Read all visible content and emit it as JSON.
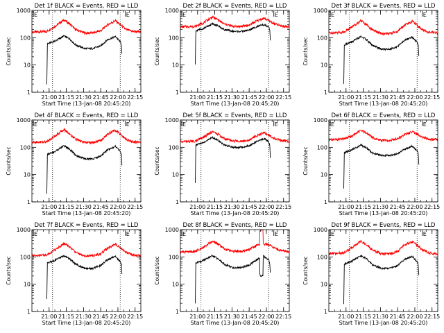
{
  "colors": {
    "events": "#000000",
    "lld": "#ff0000",
    "axes": "#000000",
    "background": "#ffffff"
  },
  "chart_data": [
    {
      "type": "line",
      "title": "Det 1f BLACK = Events, RED = LLD",
      "flag": "E",
      "xlabel": "Start Time (13-Jan-08 20:45:20)",
      "ylabel": "Counts/sec",
      "xlim_min": [
        0,
        95
      ],
      "ylim": [
        1,
        1000
      ],
      "yscale": "log",
      "xticks_min": [
        15,
        30,
        45,
        60,
        75,
        90
      ],
      "xtick_labels": [
        "21:00",
        "21:15",
        "21:30",
        "21:45",
        "22:00",
        "22:15"
      ],
      "yticks": [
        1,
        10,
        100,
        1000
      ],
      "ytick_labels": [
        "1",
        "10",
        "100",
        "1000"
      ],
      "vlines_min": [
        18,
        77
      ],
      "data_range_min": [
        13,
        82
      ],
      "series": [
        {
          "name": "LLD",
          "color": "red",
          "x": [
            0,
            13,
            20,
            28,
            33,
            38,
            46,
            53,
            60,
            66,
            73,
            77,
            82,
            88,
            95
          ],
          "y": [
            160,
            170,
            260,
            450,
            320,
            200,
            150,
            150,
            180,
            300,
            420,
            300,
            200,
            170,
            160
          ]
        },
        {
          "name": "Events",
          "color": "black",
          "x": [
            13,
            13.5,
            20,
            28,
            33,
            38,
            46,
            53,
            60,
            66,
            73,
            77,
            78,
            78.5
          ],
          "y": [
            2,
            60,
            75,
            115,
            90,
            55,
            40,
            40,
            50,
            85,
            110,
            70,
            55,
            25
          ]
        }
      ]
    },
    {
      "type": "line",
      "title": "Det 2f BLACK = Events, RED = LLD",
      "flag": "E",
      "xlabel": "Start Time (13-Jan-08 20:45:20)",
      "ylabel": "Counts/sec",
      "xlim_min": [
        0,
        95
      ],
      "ylim": [
        1,
        1000
      ],
      "yscale": "log",
      "xticks_min": [
        15,
        30,
        45,
        60,
        75,
        90
      ],
      "xtick_labels": [
        "21:00",
        "21:15",
        "21:30",
        "21:45",
        "22:00",
        "22:15"
      ],
      "yticks": [
        1,
        10,
        100,
        1000
      ],
      "ytick_labels": [
        "1",
        "10",
        "100",
        "1000"
      ],
      "vlines_min": [
        18,
        77
      ],
      "data_range_min": [
        13,
        82
      ],
      "series": [
        {
          "name": "LLD",
          "color": "red",
          "x": [
            0,
            13,
            20,
            28,
            33,
            38,
            46,
            53,
            60,
            66,
            73,
            77,
            82,
            88,
            95
          ],
          "y": [
            250,
            260,
            350,
            580,
            450,
            320,
            260,
            260,
            290,
            400,
            520,
            420,
            320,
            270,
            250
          ]
        },
        {
          "name": "Events",
          "color": "black",
          "x": [
            13,
            13.5,
            20,
            28,
            33,
            38,
            46,
            53,
            60,
            66,
            73,
            77,
            78,
            78.5
          ],
          "y": [
            10,
            180,
            220,
            320,
            270,
            200,
            170,
            170,
            190,
            250,
            300,
            240,
            200,
            80
          ]
        }
      ]
    },
    {
      "type": "line",
      "title": "Det 3f BLACK = Events, RED = LLD",
      "flag": "E",
      "xlabel": "Start Time (13-Jan-08 20:45:20)",
      "ylabel": "Counts/sec",
      "xlim_min": [
        0,
        95
      ],
      "ylim": [
        1,
        1000
      ],
      "yscale": "log",
      "xticks_min": [
        15,
        30,
        45,
        60,
        75,
        90
      ],
      "xtick_labels": [
        "21:00",
        "21:15",
        "21:30",
        "21:45",
        "22:00",
        "22:15"
      ],
      "yticks": [
        1,
        10,
        100,
        1000
      ],
      "ytick_labels": [
        "1",
        "10",
        "100",
        "1000"
      ],
      "vlines_min": [
        18,
        77
      ],
      "data_range_min": [
        13,
        82
      ],
      "series": [
        {
          "name": "LLD",
          "color": "red",
          "x": [
            0,
            13,
            20,
            28,
            33,
            38,
            46,
            53,
            60,
            66,
            73,
            77,
            82,
            88,
            95
          ],
          "y": [
            150,
            160,
            250,
            420,
            300,
            190,
            140,
            140,
            170,
            290,
            400,
            290,
            190,
            160,
            150
          ]
        },
        {
          "name": "Events",
          "color": "black",
          "x": [
            13,
            13.5,
            20,
            28,
            33,
            38,
            46,
            53,
            60,
            66,
            73,
            77,
            78,
            78.5
          ],
          "y": [
            2,
            55,
            70,
            110,
            85,
            52,
            38,
            38,
            48,
            80,
            105,
            68,
            52,
            22
          ]
        }
      ]
    },
    {
      "type": "line",
      "title": "Det 4f BLACK = Events, RED = LLD",
      "flag": "E",
      "xlabel": "Start Time (13-Jan-08 20:45:20)",
      "ylabel": "Counts/sec",
      "xlim_min": [
        0,
        95
      ],
      "ylim": [
        1,
        1000
      ],
      "yscale": "log",
      "xticks_min": [
        15,
        30,
        45,
        60,
        75,
        90
      ],
      "xtick_labels": [
        "21:00",
        "21:15",
        "21:30",
        "21:45",
        "22:00",
        "22:15"
      ],
      "yticks": [
        1,
        10,
        100,
        1000
      ],
      "ytick_labels": [
        "1",
        "10",
        "100",
        "1000"
      ],
      "vlines_min": [
        18,
        77
      ],
      "data_range_min": [
        13,
        82
      ],
      "series": [
        {
          "name": "LLD",
          "color": "red",
          "x": [
            0,
            13,
            20,
            28,
            33,
            38,
            46,
            53,
            60,
            66,
            73,
            77,
            82,
            88,
            95
          ],
          "y": [
            150,
            160,
            260,
            450,
            310,
            200,
            150,
            150,
            180,
            300,
            430,
            300,
            200,
            160,
            150
          ]
        },
        {
          "name": "Events",
          "color": "black",
          "x": [
            13,
            13.5,
            20,
            28,
            33,
            38,
            46,
            53,
            60,
            66,
            73,
            77,
            78,
            78.5
          ],
          "y": [
            2,
            55,
            70,
            115,
            85,
            52,
            38,
            38,
            48,
            82,
            110,
            70,
            52,
            22
          ]
        }
      ]
    },
    {
      "type": "line",
      "title": "Det 5f BLACK = Events, RED = LLD",
      "flag": "E",
      "xlabel": "Start Time (13-Jan-08 20:45:20)",
      "ylabel": "Counts/sec",
      "xlim_min": [
        0,
        95
      ],
      "ylim": [
        1,
        1000
      ],
      "yscale": "log",
      "xticks_min": [
        15,
        30,
        45,
        60,
        75,
        90
      ],
      "xtick_labels": [
        "21:00",
        "21:15",
        "21:30",
        "21:45",
        "22:00",
        "22:15"
      ],
      "yticks": [
        1,
        10,
        100,
        1000
      ],
      "ytick_labels": [
        "1",
        "10",
        "100",
        "1000"
      ],
      "vlines_min": [
        18,
        77
      ],
      "data_range_min": [
        13,
        82
      ],
      "series": [
        {
          "name": "LLD",
          "color": "red",
          "x": [
            0,
            13,
            20,
            28,
            33,
            38,
            46,
            53,
            60,
            66,
            73,
            77,
            82,
            88,
            95
          ],
          "y": [
            160,
            170,
            230,
            380,
            300,
            210,
            170,
            170,
            190,
            260,
            350,
            280,
            210,
            180,
            160
          ]
        },
        {
          "name": "Events",
          "color": "black",
          "x": [
            13,
            13.5,
            20,
            28,
            33,
            38,
            46,
            53,
            60,
            66,
            73,
            77,
            78,
            78.5
          ],
          "y": [
            5,
            120,
            150,
            230,
            180,
            120,
            100,
            100,
            115,
            160,
            210,
            160,
            120,
            40
          ]
        }
      ]
    },
    {
      "type": "line",
      "title": "Det 6f BLACK = Events, RED = LLD",
      "flag": "E",
      "xlabel": "Start Time (13-Jan-08 20:45:20)",
      "ylabel": "Counts/sec",
      "xlim_min": [
        0,
        95
      ],
      "ylim": [
        1,
        1000
      ],
      "yscale": "log",
      "xticks_min": [
        15,
        30,
        45,
        60,
        75,
        90
      ],
      "xtick_labels": [
        "21:00",
        "21:15",
        "21:30",
        "21:45",
        "22:00",
        "22:15"
      ],
      "yticks": [
        1,
        10,
        100,
        1000
      ],
      "ytick_labels": [
        "1",
        "10",
        "100",
        "1000"
      ],
      "vlines_min": [
        18,
        77
      ],
      "data_range_min": [
        13,
        82
      ],
      "series": [
        {
          "name": "LLD",
          "color": "red",
          "x": [
            0,
            13,
            20,
            28,
            33,
            38,
            46,
            53,
            60,
            66,
            73,
            77,
            82,
            88,
            95
          ],
          "y": [
            190,
            200,
            260,
            420,
            330,
            230,
            180,
            180,
            210,
            290,
            380,
            300,
            230,
            200,
            190
          ]
        },
        {
          "name": "Events",
          "color": "black",
          "x": [
            13,
            13.5,
            20,
            28,
            33,
            38,
            46,
            53,
            60,
            66,
            73,
            77,
            78,
            78.5
          ],
          "y": [
            3,
            65,
            80,
            120,
            95,
            62,
            50,
            50,
            58,
            85,
            110,
            75,
            60,
            25
          ]
        }
      ]
    },
    {
      "type": "line",
      "title": "Det 7f BLACK = Events, RED = LLD",
      "flag": "E",
      "xlabel": "Start Time (13-Jan-08 20:45:20)",
      "ylabel": "Counts/sec",
      "xlim_min": [
        0,
        95
      ],
      "ylim": [
        1,
        1000
      ],
      "yscale": "log",
      "xticks_min": [
        15,
        30,
        45,
        60,
        75,
        90
      ],
      "xtick_labels": [
        "21:00",
        "21:15",
        "21:30",
        "21:45",
        "22:00",
        "22:15"
      ],
      "yticks": [
        1,
        10,
        100,
        1000
      ],
      "ytick_labels": [
        "1",
        "10",
        "100",
        "1000"
      ],
      "vlines_min": [
        18,
        77
      ],
      "data_range_min": [
        13,
        82
      ],
      "series": [
        {
          "name": "LLD",
          "color": "red",
          "x": [
            0,
            13,
            20,
            28,
            33,
            38,
            46,
            53,
            60,
            66,
            73,
            77,
            82,
            88,
            95
          ],
          "y": [
            110,
            120,
            180,
            310,
            230,
            150,
            110,
            110,
            130,
            210,
            300,
            220,
            150,
            120,
            110
          ]
        },
        {
          "name": "Events",
          "color": "black",
          "x": [
            13,
            13.5,
            20,
            28,
            33,
            38,
            46,
            53,
            60,
            66,
            73,
            77,
            78,
            78.5
          ],
          "y": [
            3,
            60,
            75,
            110,
            85,
            55,
            38,
            38,
            48,
            80,
            105,
            68,
            52,
            22
          ]
        }
      ]
    },
    {
      "type": "line",
      "title": "Det 8f BLACK = Events, RED = LLD",
      "flag": "E",
      "xlabel": "Start Time (13-Jan-08 20:45:20)",
      "ylabel": "Counts/sec",
      "xlim_min": [
        0,
        95
      ],
      "ylim": [
        1,
        1000
      ],
      "yscale": "log",
      "xticks_min": [
        15,
        30,
        45,
        60,
        75,
        90
      ],
      "xtick_labels": [
        "21:00",
        "21:15",
        "21:30",
        "21:45",
        "22:00",
        "22:15"
      ],
      "yticks": [
        1,
        10,
        100,
        1000
      ],
      "ytick_labels": [
        "1",
        "10",
        "100",
        "1000"
      ],
      "vlines_min": [
        18,
        77
      ],
      "data_range_min": [
        13,
        82
      ],
      "series": [
        {
          "name": "LLD",
          "color": "red",
          "x": [
            0,
            13,
            20,
            28,
            33,
            38,
            46,
            53,
            60,
            66,
            69,
            69.3,
            72,
            72.3,
            77,
            82,
            88,
            95
          ],
          "y": [
            150,
            160,
            230,
            380,
            290,
            200,
            160,
            160,
            190,
            260,
            300,
            1000,
            1000,
            300,
            280,
            210,
            170,
            150
          ]
        },
        {
          "name": "Events",
          "color": "black",
          "x": [
            13,
            13.5,
            20,
            28,
            33,
            38,
            46,
            53,
            60,
            66,
            69,
            69.3,
            72,
            72.3,
            77,
            78,
            78.5
          ],
          "y": [
            2,
            60,
            75,
            110,
            85,
            55,
            40,
            40,
            50,
            75,
            90,
            20,
            20,
            110,
            80,
            55,
            25
          ]
        }
      ]
    },
    {
      "type": "line",
      "title": "Det 9f BLACK = Events, RED = LLD",
      "flag": "E",
      "xlabel": "Start Time (13-Jan-08 20:45:20)",
      "ylabel": "Counts/sec",
      "xlim_min": [
        0,
        95
      ],
      "ylim": [
        1,
        1000
      ],
      "yscale": "log",
      "xticks_min": [
        15,
        30,
        45,
        60,
        75,
        90
      ],
      "xtick_labels": [
        "21:00",
        "21:15",
        "21:30",
        "21:45",
        "22:00",
        "22:15"
      ],
      "yticks": [
        1,
        10,
        100,
        1000
      ],
      "ytick_labels": [
        "1",
        "10",
        "100",
        "1000"
      ],
      "vlines_min": [
        18,
        77
      ],
      "data_range_min": [
        13,
        82
      ],
      "series": [
        {
          "name": "LLD",
          "color": "red",
          "x": [
            0,
            13,
            20,
            28,
            33,
            38,
            46,
            53,
            60,
            66,
            73,
            77,
            82,
            88,
            95
          ],
          "y": [
            130,
            140,
            220,
            380,
            280,
            180,
            130,
            130,
            160,
            270,
            370,
            270,
            180,
            140,
            130
          ]
        },
        {
          "name": "Events",
          "color": "black",
          "x": [
            13,
            13.5,
            20,
            28,
            33,
            38,
            46,
            53,
            60,
            66,
            73,
            77,
            78,
            78.5
          ],
          "y": [
            2,
            55,
            70,
            110,
            85,
            52,
            38,
            38,
            48,
            80,
            105,
            68,
            52,
            22
          ]
        }
      ]
    }
  ]
}
